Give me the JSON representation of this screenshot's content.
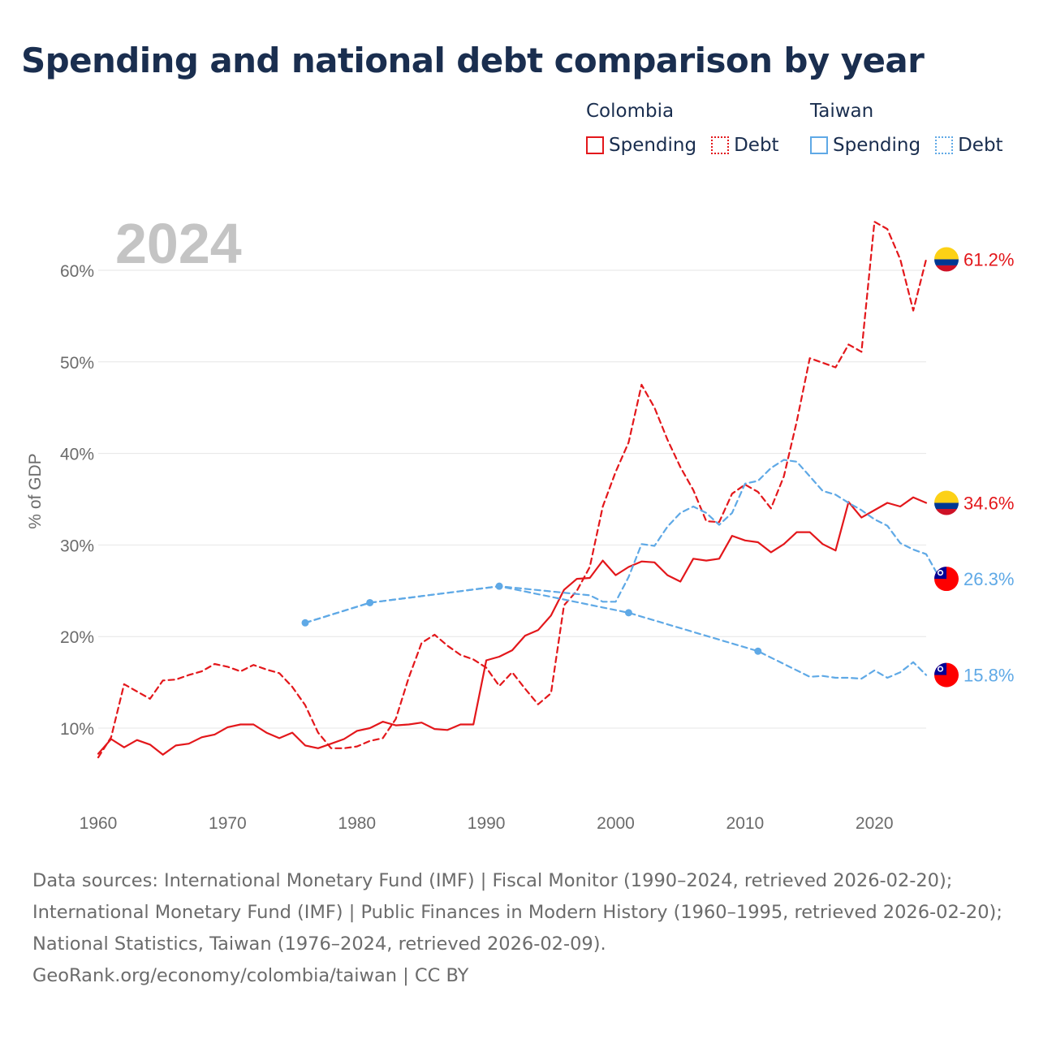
{
  "title": "Spending and national debt comparison by year",
  "legend": {
    "groups": [
      {
        "country": "Colombia",
        "items": [
          "Spending",
          "Debt"
        ]
      },
      {
        "country": "Taiwan",
        "items": [
          "Spending",
          "Debt"
        ]
      }
    ]
  },
  "colors": {
    "colombia": "#e3171b",
    "taiwan": "#5fa9e6",
    "year": "#c4c4c4",
    "text": "#1a2e4f"
  },
  "footer": {
    "sources": "Data sources: International Monetary Fund (IMF) | Fiscal Monitor (1990–2024, retrieved 2026-02-20); International Monetary Fund (IMF) | Public Finances in Modern History (1960–1995, retrieved 2026-02-20); National Statistics, Taiwan (1976–2024, retrieved 2026-02-09).",
    "credit": "GeoRank.org/economy/colombia/taiwan | CC BY"
  },
  "chart_data": {
    "type": "line",
    "year_label": "2024",
    "ylabel": "% of GDP",
    "xlim": [
      1960,
      2024
    ],
    "ylim": [
      3,
      70
    ],
    "x_ticks": [
      1960,
      1970,
      1980,
      1990,
      2000,
      2010,
      2020
    ],
    "y_ticks": [
      10,
      20,
      30,
      40,
      50,
      60
    ],
    "y_tick_labels": [
      "10%",
      "20%",
      "30%",
      "40%",
      "50%",
      "60%"
    ],
    "series": [
      {
        "name": "Colombia Debt",
        "country": "Colombia",
        "flag": "colombia",
        "dashed": true,
        "end_label": "61.2%",
        "points": [
          [
            1960,
            6.8
          ],
          [
            1961,
            9.0
          ],
          [
            1962,
            14.8
          ],
          [
            1963,
            14.0
          ],
          [
            1964,
            13.2
          ],
          [
            1965,
            15.2
          ],
          [
            1966,
            15.3
          ],
          [
            1967,
            15.8
          ],
          [
            1968,
            16.2
          ],
          [
            1969,
            17.0
          ],
          [
            1970,
            16.7
          ],
          [
            1971,
            16.2
          ],
          [
            1972,
            16.9
          ],
          [
            1973,
            16.4
          ],
          [
            1974,
            16.0
          ],
          [
            1975,
            14.5
          ],
          [
            1976,
            12.5
          ],
          [
            1977,
            9.5
          ],
          [
            1978,
            7.8
          ],
          [
            1979,
            7.8
          ],
          [
            1980,
            8.0
          ],
          [
            1981,
            8.6
          ],
          [
            1982,
            8.9
          ],
          [
            1983,
            11.0
          ],
          [
            1984,
            15.5
          ],
          [
            1985,
            19.3
          ],
          [
            1986,
            20.2
          ],
          [
            1987,
            19.0
          ],
          [
            1988,
            18.0
          ],
          [
            1989,
            17.5
          ],
          [
            1990,
            16.6
          ],
          [
            1991,
            14.6
          ],
          [
            1992,
            16.1
          ],
          [
            1993,
            14.3
          ],
          [
            1994,
            12.6
          ],
          [
            1995,
            13.8
          ],
          [
            1996,
            23.4
          ],
          [
            1997,
            25.0
          ],
          [
            1998,
            27.6
          ],
          [
            1999,
            34.2
          ],
          [
            2000,
            38.0
          ],
          [
            2001,
            41.2
          ],
          [
            2002,
            47.5
          ],
          [
            2003,
            45.0
          ],
          [
            2004,
            41.5
          ],
          [
            2005,
            38.5
          ],
          [
            2006,
            36.0
          ],
          [
            2007,
            32.6
          ],
          [
            2008,
            32.5
          ],
          [
            2009,
            35.6
          ],
          [
            2010,
            36.6
          ],
          [
            2011,
            35.8
          ],
          [
            2012,
            34.0
          ],
          [
            2013,
            37.5
          ],
          [
            2014,
            43.5
          ],
          [
            2015,
            50.4
          ],
          [
            2016,
            49.9
          ],
          [
            2017,
            49.4
          ],
          [
            2018,
            51.9
          ],
          [
            2019,
            51.1
          ],
          [
            2020,
            65.3
          ],
          [
            2021,
            64.5
          ],
          [
            2022,
            61.2
          ],
          [
            2023,
            55.6
          ],
          [
            2024,
            61.2
          ]
        ]
      },
      {
        "name": "Colombia Spending",
        "country": "Colombia",
        "flag": "colombia",
        "dashed": false,
        "end_label": "34.6%",
        "points": [
          [
            1960,
            7.2
          ],
          [
            1961,
            8.8
          ],
          [
            1962,
            7.9
          ],
          [
            1963,
            8.7
          ],
          [
            1964,
            8.2
          ],
          [
            1965,
            7.1
          ],
          [
            1966,
            8.1
          ],
          [
            1967,
            8.3
          ],
          [
            1968,
            9.0
          ],
          [
            1969,
            9.3
          ],
          [
            1970,
            10.1
          ],
          [
            1971,
            10.4
          ],
          [
            1972,
            10.4
          ],
          [
            1973,
            9.5
          ],
          [
            1974,
            8.9
          ],
          [
            1975,
            9.5
          ],
          [
            1976,
            8.1
          ],
          [
            1977,
            7.8
          ],
          [
            1978,
            8.3
          ],
          [
            1979,
            8.8
          ],
          [
            1980,
            9.7
          ],
          [
            1981,
            10.0
          ],
          [
            1982,
            10.7
          ],
          [
            1983,
            10.3
          ],
          [
            1984,
            10.4
          ],
          [
            1985,
            10.6
          ],
          [
            1986,
            9.9
          ],
          [
            1987,
            9.8
          ],
          [
            1988,
            10.4
          ],
          [
            1989,
            10.4
          ],
          [
            1990,
            17.4
          ],
          [
            1991,
            17.8
          ],
          [
            1992,
            18.5
          ],
          [
            1993,
            20.1
          ],
          [
            1994,
            20.7
          ],
          [
            1995,
            22.3
          ],
          [
            1996,
            25.1
          ],
          [
            1997,
            26.3
          ],
          [
            1998,
            26.4
          ],
          [
            1999,
            28.3
          ],
          [
            2000,
            26.7
          ],
          [
            2001,
            27.6
          ],
          [
            2002,
            28.2
          ],
          [
            2003,
            28.1
          ],
          [
            2004,
            26.7
          ],
          [
            2005,
            26.0
          ],
          [
            2006,
            28.5
          ],
          [
            2007,
            28.3
          ],
          [
            2008,
            28.5
          ],
          [
            2009,
            31.0
          ],
          [
            2010,
            30.5
          ],
          [
            2011,
            30.3
          ],
          [
            2012,
            29.2
          ],
          [
            2013,
            30.1
          ],
          [
            2014,
            31.4
          ],
          [
            2015,
            31.4
          ],
          [
            2016,
            30.1
          ],
          [
            2017,
            29.4
          ],
          [
            2018,
            34.7
          ],
          [
            2019,
            33.0
          ],
          [
            2020,
            33.8
          ],
          [
            2021,
            34.6
          ],
          [
            2022,
            34.2
          ],
          [
            2023,
            35.2
          ],
          [
            2024,
            34.6
          ]
        ]
      },
      {
        "name": "Taiwan Debt",
        "country": "Taiwan",
        "flag": "taiwan",
        "dashed": true,
        "end_label": "26.3%",
        "points": [
          [
            1976,
            21.5
          ],
          [
            1981,
            23.7
          ],
          [
            1991,
            25.5
          ],
          [
            1998,
            24.5
          ],
          [
            1999,
            23.8
          ],
          [
            2000,
            23.8
          ],
          [
            2001,
            26.5
          ],
          [
            2002,
            30.1
          ],
          [
            2003,
            29.9
          ],
          [
            2004,
            32.0
          ],
          [
            2005,
            33.5
          ],
          [
            2006,
            34.2
          ],
          [
            2007,
            33.5
          ],
          [
            2008,
            32.2
          ],
          [
            2009,
            33.5
          ],
          [
            2010,
            36.7
          ],
          [
            2011,
            37.0
          ],
          [
            2012,
            38.4
          ],
          [
            2013,
            39.3
          ],
          [
            2014,
            39.1
          ],
          [
            2015,
            37.5
          ],
          [
            2016,
            35.9
          ],
          [
            2017,
            35.5
          ],
          [
            2018,
            34.6
          ],
          [
            2019,
            33.8
          ],
          [
            2020,
            32.8
          ],
          [
            2021,
            32.1
          ],
          [
            2022,
            30.2
          ],
          [
            2023,
            29.5
          ],
          [
            2024,
            29.0
          ],
          [
            2025,
            26.5
          ],
          [
            2026,
            26.3
          ]
        ]
      },
      {
        "name": "Taiwan Spending",
        "country": "Taiwan",
        "flag": "taiwan",
        "dashed": true,
        "end_label": "15.8%",
        "points": [
          [
            1976,
            21.5
          ],
          [
            1981,
            23.7
          ],
          [
            1991,
            25.5
          ],
          [
            2001,
            22.6
          ],
          [
            2011,
            18.4
          ],
          [
            2015,
            15.6
          ],
          [
            2016,
            15.7
          ],
          [
            2017,
            15.5
          ],
          [
            2018,
            15.5
          ],
          [
            2019,
            15.4
          ],
          [
            2020,
            16.3
          ],
          [
            2021,
            15.5
          ],
          [
            2022,
            16.1
          ],
          [
            2023,
            17.2
          ],
          [
            2024,
            15.8
          ]
        ]
      }
    ],
    "markers": [
      [
        1976,
        21.5
      ],
      [
        1981,
        23.7
      ],
      [
        1991,
        25.5
      ],
      [
        2001,
        22.6
      ],
      [
        2011,
        18.4
      ]
    ]
  }
}
